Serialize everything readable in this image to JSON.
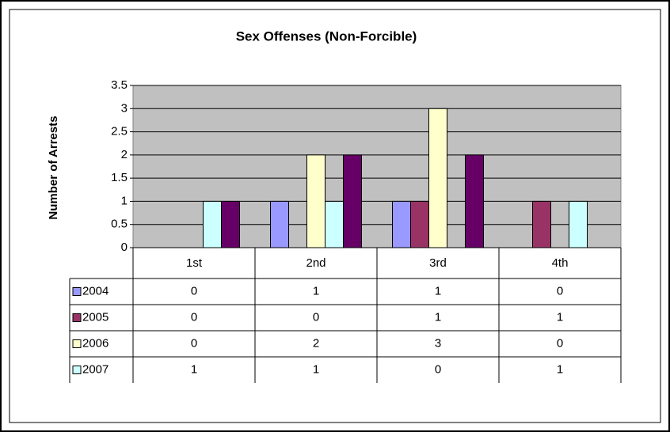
{
  "chart_data": {
    "type": "bar",
    "title": "Sex Offenses (Non-Forcible)",
    "y_label": "Number of Arrests",
    "categories": [
      "1st",
      "2nd",
      "3rd",
      "4th"
    ],
    "series": [
      {
        "name": "2004",
        "color": "#9999ff",
        "values": [
          0,
          1,
          1,
          0
        ]
      },
      {
        "name": "2005",
        "color": "#993366",
        "values": [
          0,
          0,
          1,
          1
        ]
      },
      {
        "name": "2006",
        "color": "#ffffcc",
        "values": [
          0,
          2,
          3,
          0
        ]
      },
      {
        "name": "2007",
        "color": "#ccffff",
        "values": [
          1,
          1,
          0,
          1
        ]
      },
      {
        "color": "#660066",
        "values": [
          1,
          2,
          2,
          0
        ]
      }
    ],
    "ylim": [
      0,
      3.5
    ],
    "yticks": [
      0,
      0.5,
      1,
      1.5,
      2,
      2.5,
      3,
      3.5
    ],
    "grid": true,
    "plot_background": "#c0c0c0"
  }
}
